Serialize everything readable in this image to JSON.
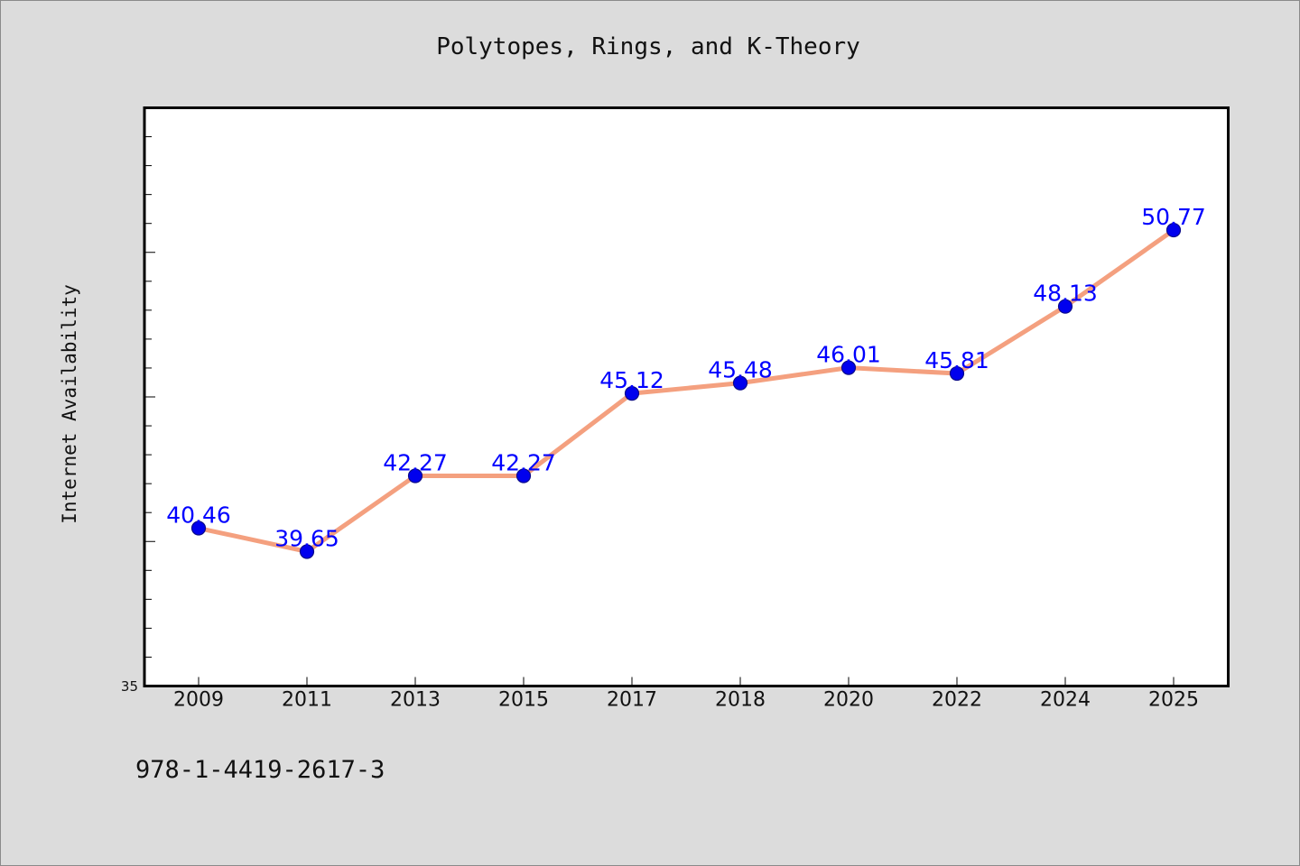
{
  "chart_data": {
    "type": "line",
    "title": "Polytopes, Rings, and K-Theory",
    "xlabel": "",
    "ylabel": "Internet Availability",
    "categories": [
      "2009",
      "2011",
      "2013",
      "2015",
      "2017",
      "2018",
      "2020",
      "2022",
      "2024",
      "2025"
    ],
    "series": [
      {
        "values": [
          40.46,
          39.65,
          42.27,
          42.27,
          45.12,
          45.48,
          46.01,
          45.81,
          48.13,
          50.77
        ],
        "data_labels": [
          "40.46",
          "39.65",
          "42.27",
          "42.27",
          "45.12",
          "45.48",
          "46.01",
          "45.81",
          "48.13",
          "50.77"
        ]
      }
    ],
    "ylim": [
      35,
      55
    ],
    "y_min_label": "35",
    "grid": false,
    "legend": "none",
    "colors": {
      "line": "#f4a07f",
      "marker": "#0000ee",
      "marker_edge": "#0a0a8a",
      "label": "#0000ff",
      "axis": "#000000",
      "plot_bg": "#ffffff",
      "page_bg": "#dcdcdc"
    }
  },
  "footer": {
    "isbn": "978-1-4419-2617-3"
  }
}
